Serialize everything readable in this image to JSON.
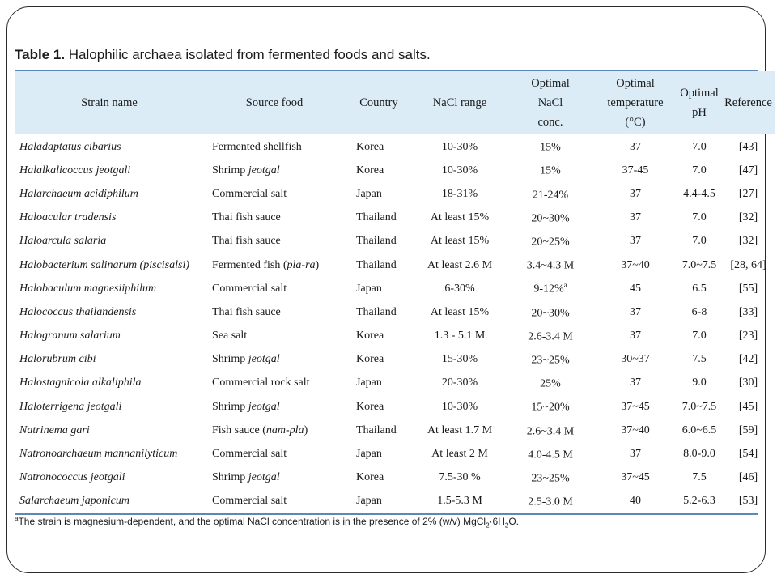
{
  "caption": {
    "label": "Table 1.",
    "text": " Halophilic archaea isolated from fermented foods and salts."
  },
  "columns": [
    [
      "Strain name"
    ],
    [
      "Source food"
    ],
    [
      "Country"
    ],
    [
      "NaCl range"
    ],
    [
      "Optimal",
      "NaCl",
      "conc."
    ],
    [
      "Optimal",
      "temperature",
      "(°C)"
    ],
    [
      "Optimal",
      "pH"
    ],
    [
      "Reference"
    ]
  ],
  "rows": [
    {
      "strain": "Haladaptatus cibarius",
      "source": "Fermented shellfish",
      "source_em": "",
      "source_tail": "",
      "country": "Korea",
      "range": "10-30%",
      "conc": "15%",
      "conc_mark": "",
      "temp": "37",
      "ph": "7.0",
      "ref": "[43]"
    },
    {
      "strain": "Halalkalicoccus jeotgali",
      "source": "Shrimp ",
      "source_em": "jeotgal",
      "source_tail": "",
      "country": "Korea",
      "range": "10-30%",
      "conc": "15%",
      "conc_mark": "",
      "temp": "37-45",
      "ph": "7.0",
      "ref": "[47]"
    },
    {
      "strain": "Halarchaeum acidiphilum",
      "source": "Commercial salt",
      "source_em": "",
      "source_tail": "",
      "country": "Japan",
      "range": "18-31%",
      "conc": "21-24%",
      "conc_mark": "",
      "temp": "37",
      "ph": "4.4-4.5",
      "ref": "[27]"
    },
    {
      "strain": "Haloacular tradensis",
      "source": "Thai fish sauce",
      "source_em": "",
      "source_tail": "",
      "country": "Thailand",
      "range": "At least 15%",
      "conc": "20~30%",
      "conc_mark": "",
      "temp": "37",
      "ph": "7.0",
      "ref": "[32]"
    },
    {
      "strain": "Haloarcula salaria",
      "source": "Thai fish sauce",
      "source_em": "",
      "source_tail": "",
      "country": "Thailand",
      "range": "At least 15%",
      "conc": "20~25%",
      "conc_mark": "",
      "temp": "37",
      "ph": "7.0",
      "ref": "[32]"
    },
    {
      "strain": "Halobacterium salinarum (piscisalsi)",
      "source": "Fermented fish (",
      "source_em": "pla-ra",
      "source_tail": ")",
      "country": "Thailand",
      "range": "At least 2.6 M",
      "conc": "3.4~4.3 M",
      "conc_mark": "",
      "temp": "37~40",
      "ph": "7.0~7.5",
      "ref": "[28, 64]"
    },
    {
      "strain": "Halobaculum magnesiiphilum",
      "source": "Commercial salt",
      "source_em": "",
      "source_tail": "",
      "country": "Japan",
      "range": "6-30%",
      "conc": "9-12%",
      "conc_mark": "a",
      "temp": "45",
      "ph": "6.5",
      "ref": "[55]"
    },
    {
      "strain": "Halococcus thailandensis",
      "source": "Thai fish sauce",
      "source_em": "",
      "source_tail": "",
      "country": "Thailand",
      "range": "At least 15%",
      "conc": "20~30%",
      "conc_mark": "",
      "temp": "37",
      "ph": "6-8",
      "ref": "[33]"
    },
    {
      "strain": "Halogranum salarium",
      "source": "Sea salt",
      "source_em": "",
      "source_tail": "",
      "country": "Korea",
      "range": "1.3 - 5.1 M",
      "conc": "2.6-3.4 M",
      "conc_mark": "",
      "temp": "37",
      "ph": "7.0",
      "ref": "[23]"
    },
    {
      "strain": "Halorubrum cibi",
      "source": "Shrimp ",
      "source_em": "jeotgal",
      "source_tail": "",
      "country": "Korea",
      "range": "15-30%",
      "conc": "23~25%",
      "conc_mark": "",
      "temp": "30~37",
      "ph": "7.5",
      "ref": "[42]"
    },
    {
      "strain": "Halostagnicola alkaliphila",
      "source": "Commercial rock salt",
      "source_em": "",
      "source_tail": "",
      "country": "Japan",
      "range": "20-30%",
      "conc": "25%",
      "conc_mark": "",
      "temp": "37",
      "ph": "9.0",
      "ref": "[30]"
    },
    {
      "strain": "Haloterrigena jeotgali",
      "source": "Shrimp ",
      "source_em": "jeotgal",
      "source_tail": "",
      "country": "Korea",
      "range": "10-30%",
      "conc": "15~20%",
      "conc_mark": "",
      "temp": "37~45",
      "ph": "7.0~7.5",
      "ref": "[45]"
    },
    {
      "strain": "Natrinema gari",
      "source": "Fish sauce (",
      "source_em": "nam-pla",
      "source_tail": ")",
      "country": "Thailand",
      "range": "At least 1.7 M",
      "conc": "2.6~3.4 M",
      "conc_mark": "",
      "temp": "37~40",
      "ph": "6.0~6.5",
      "ref": "[59]"
    },
    {
      "strain": "Natronoarchaeum mannanilyticum",
      "source": "Commercial salt",
      "source_em": "",
      "source_tail": "",
      "country": "Japan",
      "range": "At least 2 M",
      "conc": "4.0-4.5 M",
      "conc_mark": "",
      "temp": "37",
      "ph": "8.0-9.0",
      "ref": "[54]"
    },
    {
      "strain": "Natronococcus jeotgali",
      "source": "Shrimp ",
      "source_em": "jeotgal",
      "source_tail": "",
      "country": "Korea",
      "range": "7.5-30 %",
      "conc": "23~25%",
      "conc_mark": "",
      "temp": "37~45",
      "ph": "7.5",
      "ref": "[46]"
    },
    {
      "strain": "Salarchaeum japonicum",
      "source": "Commercial salt",
      "source_em": "",
      "source_tail": "",
      "country": "Japan",
      "range": "1.5-5.3 M",
      "conc": "2.5-3.0 M",
      "conc_mark": "",
      "temp": "40",
      "ph": "5.2-6.3",
      "ref": "[53]"
    }
  ],
  "footnote": {
    "mark": "a",
    "text": "The strain is magnesium-dependent, and the optimal NaCl concentration is in the presence of 2% (w/v) MgCl",
    "sub1": "2",
    "mid": "·6H",
    "sub2": "2",
    "end": "O."
  }
}
